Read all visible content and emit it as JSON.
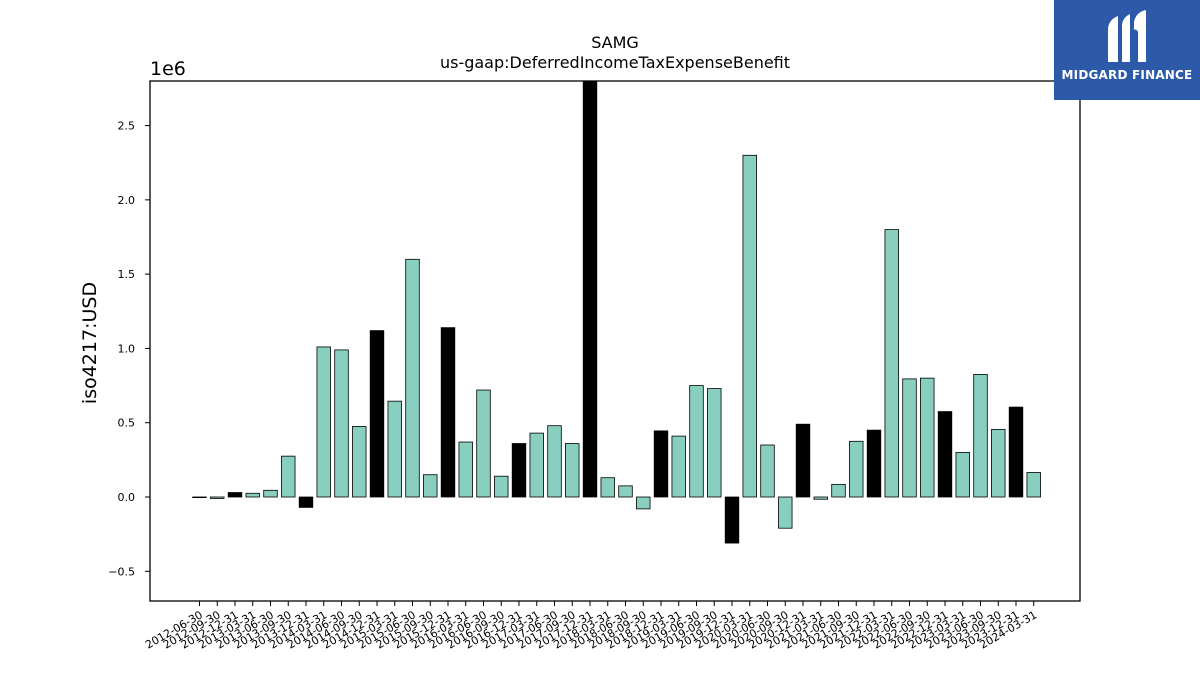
{
  "brand": {
    "name": "MIDGARD FINANCE",
    "bg_color": "#2d5aa8"
  },
  "chart_data": {
    "type": "bar",
    "title": "SAMG",
    "subtitle": "us-gaap:DeferredIncomeTaxExpenseBenefit",
    "ylabel": "iso4217:USD",
    "xlabel": "",
    "y_offset_label": "1e6",
    "ylim": [
      -0.7,
      2.8
    ],
    "yticks": [
      -0.5,
      0.0,
      0.5,
      1.0,
      1.5,
      2.0,
      2.5
    ],
    "ytick_labels": [
      "−0.5",
      "0.0",
      "0.5",
      "1.0",
      "1.5",
      "2.0",
      "2.5"
    ],
    "grid": false,
    "colors": {
      "quarter": "#88cfc0",
      "year_end": "#000000",
      "edge": "#000000"
    },
    "categories": [
      "2012-06-30",
      "2012-09-30",
      "2012-12-31",
      "2013-03-31",
      "2013-06-30",
      "2013-09-30",
      "2013-12-31",
      "2014-03-31",
      "2014-06-30",
      "2014-09-30",
      "2014-12-31",
      "2015-03-31",
      "2015-06-30",
      "2015-09-30",
      "2015-12-31",
      "2016-03-31",
      "2016-06-30",
      "2016-09-30",
      "2016-12-31",
      "2017-03-31",
      "2017-06-30",
      "2017-09-30",
      "2017-12-31",
      "2018-03-31",
      "2018-06-30",
      "2018-09-30",
      "2018-12-31",
      "2019-03-31",
      "2019-06-30",
      "2019-09-30",
      "2019-12-31",
      "2020-03-31",
      "2020-06-30",
      "2020-09-30",
      "2020-12-31",
      "2021-03-31",
      "2021-06-30",
      "2021-09-30",
      "2021-12-31",
      "2022-03-31",
      "2022-06-30",
      "2022-09-30",
      "2022-12-31",
      "2023-03-31",
      "2023-06-30",
      "2023-09-30",
      "2023-12-31",
      "2024-03-31"
    ],
    "values": [
      0.0,
      -0.01,
      0.03,
      0.025,
      0.045,
      0.275,
      -0.07,
      1.01,
      0.99,
      0.475,
      1.12,
      0.645,
      1.6,
      0.15,
      1.14,
      0.37,
      0.72,
      0.14,
      0.36,
      0.43,
      0.48,
      0.36,
      2.85,
      0.13,
      0.075,
      -0.08,
      0.445,
      0.41,
      0.75,
      0.73,
      -0.31,
      2.3,
      0.35,
      -0.21,
      0.49,
      -0.015,
      0.085,
      0.375,
      0.45,
      1.8,
      0.795,
      0.8,
      0.575,
      0.3,
      0.825,
      0.455,
      0.605,
      0.165
    ],
    "year_end": [
      false,
      false,
      true,
      false,
      false,
      false,
      true,
      false,
      false,
      false,
      true,
      false,
      false,
      false,
      true,
      false,
      false,
      false,
      true,
      false,
      false,
      false,
      true,
      false,
      false,
      false,
      true,
      false,
      false,
      false,
      true,
      false,
      false,
      false,
      true,
      false,
      false,
      false,
      true,
      false,
      false,
      false,
      true,
      false,
      false,
      false,
      true,
      false
    ]
  }
}
